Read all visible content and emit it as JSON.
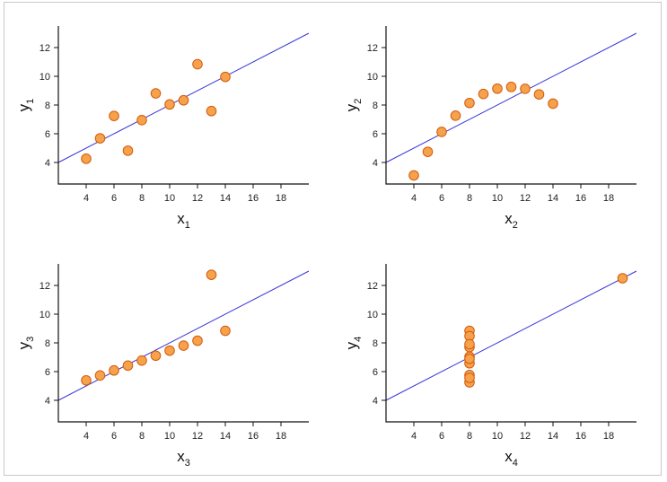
{
  "chart_data": [
    {
      "type": "scatter",
      "xlabel": "x",
      "xlabel_sub": "1",
      "ylabel": "y",
      "ylabel_sub": "1",
      "xlim": [
        2,
        20
      ],
      "ylim": [
        2.5,
        13.5
      ],
      "xticks": [
        4,
        6,
        8,
        10,
        12,
        14,
        16,
        18
      ],
      "yticks": [
        4,
        6,
        8,
        10,
        12
      ],
      "points": [
        [
          10,
          8.04
        ],
        [
          8,
          6.95
        ],
        [
          13,
          7.58
        ],
        [
          9,
          8.81
        ],
        [
          11,
          8.33
        ],
        [
          14,
          9.96
        ],
        [
          6,
          7.24
        ],
        [
          4,
          4.26
        ],
        [
          12,
          10.84
        ],
        [
          7,
          4.82
        ],
        [
          5,
          5.68
        ]
      ],
      "fit_line": {
        "intercept": 3.0,
        "slope": 0.5
      }
    },
    {
      "type": "scatter",
      "xlabel": "x",
      "xlabel_sub": "2",
      "ylabel": "y",
      "ylabel_sub": "2",
      "xlim": [
        2,
        20
      ],
      "ylim": [
        2.5,
        13.5
      ],
      "xticks": [
        4,
        6,
        8,
        10,
        12,
        14,
        16,
        18
      ],
      "yticks": [
        4,
        6,
        8,
        10,
        12
      ],
      "points": [
        [
          10,
          9.14
        ],
        [
          8,
          8.14
        ],
        [
          13,
          8.74
        ],
        [
          9,
          8.77
        ],
        [
          11,
          9.26
        ],
        [
          14,
          8.1
        ],
        [
          6,
          6.13
        ],
        [
          4,
          3.1
        ],
        [
          12,
          9.13
        ],
        [
          7,
          7.26
        ],
        [
          5,
          4.74
        ]
      ],
      "fit_line": {
        "intercept": 3.0,
        "slope": 0.5
      }
    },
    {
      "type": "scatter",
      "xlabel": "x",
      "xlabel_sub": "3",
      "ylabel": "y",
      "ylabel_sub": "3",
      "xlim": [
        2,
        20
      ],
      "ylim": [
        2.5,
        13.5
      ],
      "xticks": [
        4,
        6,
        8,
        10,
        12,
        14,
        16,
        18
      ],
      "yticks": [
        4,
        6,
        8,
        10,
        12
      ],
      "points": [
        [
          10,
          7.46
        ],
        [
          8,
          6.77
        ],
        [
          13,
          12.74
        ],
        [
          9,
          7.11
        ],
        [
          11,
          7.81
        ],
        [
          14,
          8.84
        ],
        [
          6,
          6.08
        ],
        [
          4,
          5.39
        ],
        [
          12,
          8.15
        ],
        [
          7,
          6.42
        ],
        [
          5,
          5.73
        ]
      ],
      "fit_line": {
        "intercept": 3.0,
        "slope": 0.5
      }
    },
    {
      "type": "scatter",
      "xlabel": "x",
      "xlabel_sub": "4",
      "ylabel": "y",
      "ylabel_sub": "4",
      "xlim": [
        2,
        20
      ],
      "ylim": [
        2.5,
        13.5
      ],
      "xticks": [
        4,
        6,
        8,
        10,
        12,
        14,
        16,
        18
      ],
      "yticks": [
        4,
        6,
        8,
        10,
        12
      ],
      "points": [
        [
          8,
          6.58
        ],
        [
          8,
          5.76
        ],
        [
          8,
          7.71
        ],
        [
          8,
          8.84
        ],
        [
          8,
          8.47
        ],
        [
          8,
          7.04
        ],
        [
          8,
          5.25
        ],
        [
          19,
          12.5
        ],
        [
          8,
          5.56
        ],
        [
          8,
          7.91
        ],
        [
          8,
          6.89
        ]
      ],
      "fit_line": {
        "intercept": 3.0,
        "slope": 0.5
      }
    }
  ],
  "colors": {
    "point_fill": "#f5a24a",
    "point_stroke": "#d45a10",
    "fit_line": "#3a3ad6",
    "axis": "#111111",
    "frame_border": "#c8c8c8"
  }
}
